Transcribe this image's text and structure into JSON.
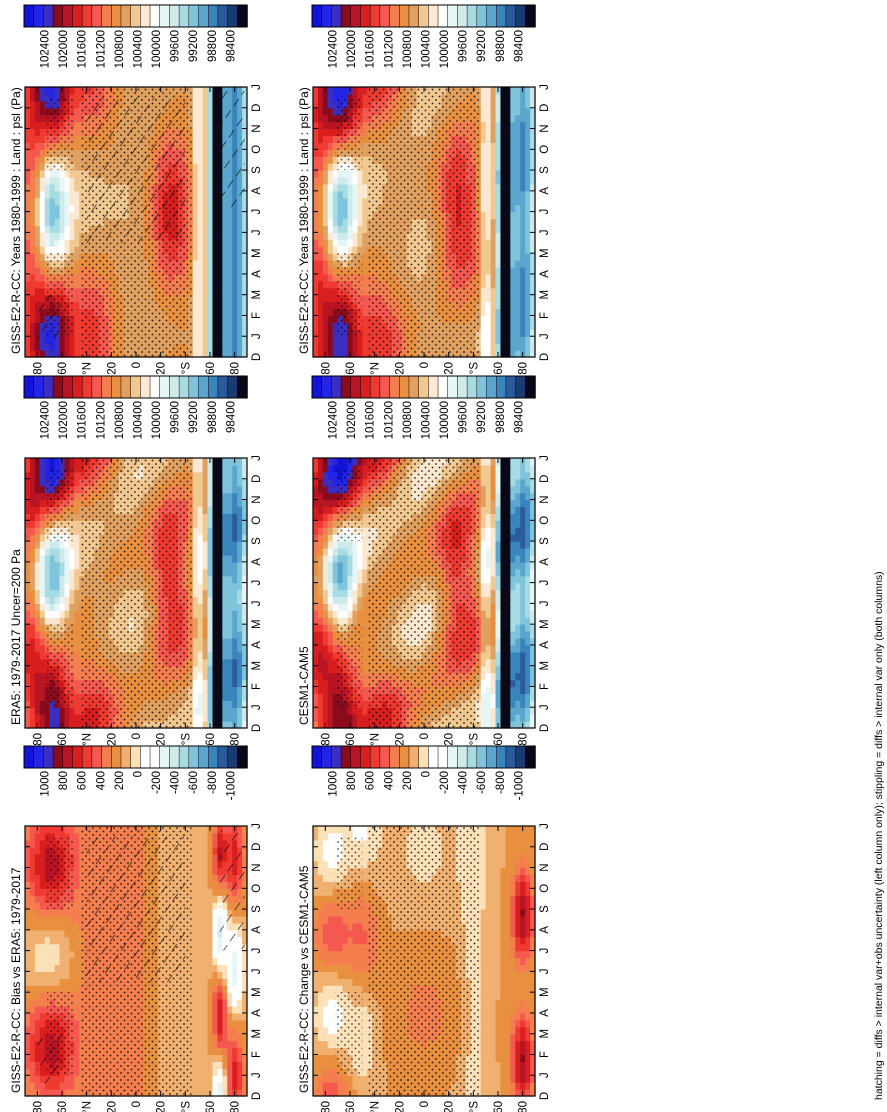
{
  "caption": "hatching = diffs > internal var+obs uncertainty (left column only); stippling = diffs > internal var only (both columns)",
  "months": [
    "D",
    "J",
    "F",
    "M",
    "A",
    "M",
    "J",
    "J",
    "A",
    "S",
    "O",
    "N",
    "D",
    "J"
  ],
  "lat_ticks": [
    "80",
    "60",
    "°N",
    "20",
    "0",
    "20",
    "°S",
    "60",
    "80"
  ],
  "palettes": {
    "abs": [
      "#1414d6",
      "#2424e6",
      "#3a2fc0",
      "#8a0c1c",
      "#b81424",
      "#d81e1e",
      "#ee3a30",
      "#f4584e",
      "#f47e4e",
      "#e89040",
      "#e0a060",
      "#f0c890",
      "#fce8d0",
      "#ffffff",
      "#e6f6f6",
      "#cfeaea",
      "#a8dce4",
      "#80c4dc",
      "#5aa6cc",
      "#3a84bc",
      "#2a5c9c",
      "#1a3c74",
      "#080818"
    ],
    "diff": [
      "#1414d6",
      "#2424e6",
      "#3a2fc0",
      "#8a0c1c",
      "#b81424",
      "#d81e1e",
      "#ee3a30",
      "#f4584e",
      "#f47e4e",
      "#e89040",
      "#f0b070",
      "#fce0b8",
      "#ffffff",
      "#ffffff",
      "#e6f6f6",
      "#cfeaea",
      "#a8dce4",
      "#80c4dc",
      "#5aa6cc",
      "#3a84bc",
      "#2a5c9c",
      "#1a3c74",
      "#080818"
    ]
  },
  "chart_data": [
    {
      "type": "heatmap",
      "id": "top-left",
      "title": "GISS-E2-R-CC: Years 1980-1999 : Land : psl (Pa)",
      "field": "abs",
      "hatching": true,
      "colorbar": {
        "ticks": [
          "102400",
          "102000",
          "101600",
          "101200",
          "100800",
          "100400",
          "100000",
          "99600",
          "99200",
          "98800",
          "98400"
        ]
      }
    },
    {
      "type": "heatmap",
      "id": "top-right",
      "title": "GISS-E2-R-CC: Years 1980-1999 : Land : psl (Pa)",
      "field": "abs",
      "hatching": false,
      "colorbar": {
        "ticks": [
          "102400",
          "102000",
          "101600",
          "101200",
          "100800",
          "100400",
          "100000",
          "99600",
          "99200",
          "98800",
          "98400"
        ]
      }
    },
    {
      "type": "heatmap",
      "id": "mid-left",
      "title": "ERA5: 1979-2017 Uncer=200 Pa",
      "field": "abs",
      "hatching": false,
      "colorbar": {
        "ticks": [
          "102400",
          "102000",
          "101600",
          "101200",
          "100800",
          "100400",
          "100000",
          "99600",
          "99200",
          "98800",
          "98400"
        ]
      }
    },
    {
      "type": "heatmap",
      "id": "mid-right",
      "title": "CESM1-CAM5",
      "field": "abs",
      "hatching": false,
      "colorbar": {
        "ticks": [
          "102400",
          "102000",
          "101600",
          "101200",
          "100800",
          "100400",
          "100000",
          "99600",
          "99200",
          "98800",
          "98400"
        ]
      }
    },
    {
      "type": "heatmap",
      "id": "bottom-left",
      "title": "GISS-E2-R-CC: Bias vs ERA5: 1979-2017",
      "field": "bias",
      "hatching": true,
      "colorbar": {
        "ticks": [
          "1000",
          "800",
          "600",
          "400",
          "200",
          "0",
          "-200",
          "-400",
          "-600",
          "-800",
          "-1000"
        ]
      }
    },
    {
      "type": "heatmap",
      "id": "bottom-right",
      "title": "GISS-E2-R-CC: Change vs CESM1-CAM5",
      "field": "change",
      "hatching": false,
      "colorbar": {
        "ticks": [
          "1000",
          "800",
          "600",
          "400",
          "200",
          "0",
          "-200",
          "-400",
          "-600",
          "-800",
          "-1000"
        ]
      }
    }
  ]
}
